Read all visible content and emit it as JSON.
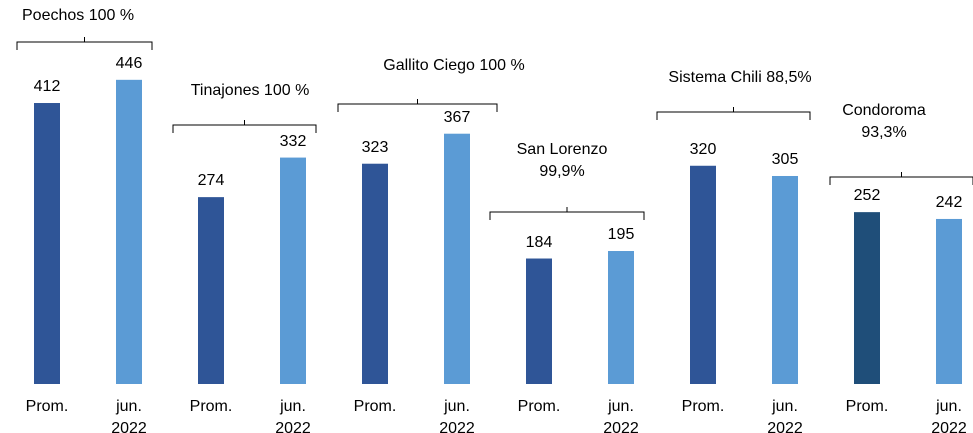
{
  "chart_data": {
    "type": "bar",
    "groups": [
      {
        "label": "Poechos 100 %",
        "categories": [
          "Prom.",
          "jun.\n2022"
        ],
        "values": [
          412,
          446
        ],
        "colors": [
          "#2f5597",
          "#5b9bd5"
        ]
      },
      {
        "label": "Tinajones 100 %",
        "categories": [
          "Prom.",
          "jun.\n2022"
        ],
        "values": [
          274,
          332
        ],
        "colors": [
          "#2f5597",
          "#5b9bd5"
        ]
      },
      {
        "label": "Gallito Ciego 100 %",
        "categories": [
          "Prom.",
          "jun.\n2022"
        ],
        "values": [
          323,
          367
        ],
        "colors": [
          "#2f5597",
          "#5b9bd5"
        ]
      },
      {
        "label": "San Lorenzo\n99,9%",
        "categories": [
          "Prom.",
          "jun.\n2022"
        ],
        "values": [
          184,
          195
        ],
        "colors": [
          "#2f5597",
          "#5b9bd5"
        ]
      },
      {
        "label": "Sistema Chili 88,5%",
        "categories": [
          "Prom.",
          "jun.\n2022"
        ],
        "values": [
          320,
          305
        ],
        "colors": [
          "#2f5597",
          "#5b9bd5"
        ]
      },
      {
        "label": "Condoroma\n93,3%",
        "categories": [
          "Prom.",
          "jun.\n2022"
        ],
        "values": [
          252,
          242
        ],
        "colors": [
          "#1f4e79",
          "#5b9bd5"
        ]
      }
    ]
  }
}
